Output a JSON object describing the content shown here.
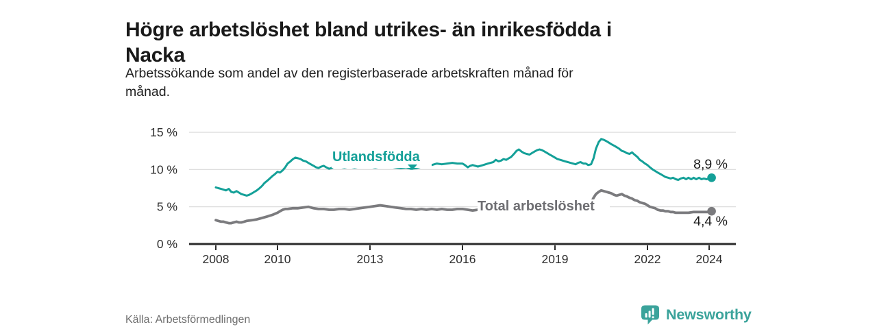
{
  "header": {
    "title_lines": [
      "Högre arbetslöshet bland utrikes- än inrikesfödda i",
      "Nacka"
    ],
    "subtitle_lines": [
      "Arbetssökande som andel av den registerbaserade arbetskraften månad för",
      "månad."
    ]
  },
  "footer": {
    "source": "Källa: Arbetsförmedlingen",
    "brand": "Newsworthy",
    "brand_icon": "newsworthy-speech-bubble-barchart-icon",
    "brand_color": "#3ba39b"
  },
  "colors": {
    "accent_teal": "#14a098",
    "line_gray": "#7b7b7e",
    "label_gray": "#6e6e72",
    "grid": "#d9d9d9",
    "axis": "#2b2b2b",
    "tick_text": "#2f2f2f"
  },
  "chart_data": {
    "type": "line",
    "title": "Högre arbetslöshet bland utrikes- än inrikesfödda i Nacka",
    "subtitle": "Arbetssökande som andel av den registerbaserade arbetskraften månad för månad.",
    "source": "Källa: Arbetsförmedlingen",
    "grid": true,
    "legend_position": "inline-labels",
    "x_axis": {
      "range": [
        2007.1,
        2024.9
      ],
      "ticks": [
        2008,
        2010,
        2013,
        2016,
        2019,
        2022,
        2024
      ]
    },
    "y_axis": {
      "range": [
        0,
        15
      ],
      "unit": "%",
      "ticks": [
        0,
        5,
        10,
        15
      ],
      "tick_labels": [
        "0 %",
        "5 %",
        "10 %",
        "15 %"
      ]
    },
    "series": [
      {
        "name": "Utlandsfödda",
        "color": "#14a098",
        "end_value": 8.9,
        "end_label": "8,9 %",
        "points": [
          [
            2008.0,
            7.6
          ],
          [
            2008.08,
            7.5
          ],
          [
            2008.17,
            7.4
          ],
          [
            2008.25,
            7.3
          ],
          [
            2008.33,
            7.2
          ],
          [
            2008.42,
            7.4
          ],
          [
            2008.5,
            7.0
          ],
          [
            2008.58,
            6.9
          ],
          [
            2008.67,
            7.1
          ],
          [
            2008.75,
            6.9
          ],
          [
            2008.83,
            6.7
          ],
          [
            2008.92,
            6.6
          ],
          [
            2009.0,
            6.5
          ],
          [
            2009.08,
            6.6
          ],
          [
            2009.17,
            6.8
          ],
          [
            2009.25,
            7.0
          ],
          [
            2009.33,
            7.2
          ],
          [
            2009.42,
            7.5
          ],
          [
            2009.5,
            7.8
          ],
          [
            2009.58,
            8.2
          ],
          [
            2009.67,
            8.5
          ],
          [
            2009.75,
            8.8
          ],
          [
            2009.83,
            9.1
          ],
          [
            2009.92,
            9.4
          ],
          [
            2010.0,
            9.7
          ],
          [
            2010.08,
            9.6
          ],
          [
            2010.17,
            9.9
          ],
          [
            2010.25,
            10.3
          ],
          [
            2010.33,
            10.8
          ],
          [
            2010.42,
            11.1
          ],
          [
            2010.5,
            11.4
          ],
          [
            2010.58,
            11.6
          ],
          [
            2010.67,
            11.5
          ],
          [
            2010.75,
            11.4
          ],
          [
            2010.83,
            11.2
          ],
          [
            2010.92,
            11.1
          ],
          [
            2011.0,
            10.9
          ],
          [
            2011.08,
            10.7
          ],
          [
            2011.17,
            10.5
          ],
          [
            2011.25,
            10.3
          ],
          [
            2011.33,
            10.2
          ],
          [
            2011.42,
            10.4
          ],
          [
            2011.5,
            10.5
          ],
          [
            2011.58,
            10.3
          ],
          [
            2011.67,
            10.1
          ],
          [
            2011.75,
            10.2
          ],
          [
            2011.83,
            10.4
          ],
          [
            2011.92,
            10.5
          ],
          [
            2012.0,
            10.4
          ],
          [
            2012.17,
            10.3
          ],
          [
            2012.33,
            10.4
          ],
          [
            2012.5,
            10.3
          ],
          [
            2012.67,
            10.4
          ],
          [
            2012.83,
            10.5
          ],
          [
            2013.0,
            10.4
          ],
          [
            2013.17,
            10.3
          ],
          [
            2013.33,
            10.4
          ],
          [
            2013.5,
            10.5
          ],
          [
            2013.67,
            10.4
          ],
          [
            2013.83,
            10.3
          ],
          [
            2014.0,
            10.2
          ],
          [
            2014.17,
            10.3
          ],
          [
            2014.33,
            10.1
          ],
          [
            2014.5,
            10.2
          ],
          [
            2014.67,
            10.4
          ],
          [
            2014.83,
            10.5
          ],
          [
            2015.0,
            10.6
          ],
          [
            2015.17,
            10.8
          ],
          [
            2015.33,
            10.7
          ],
          [
            2015.5,
            10.8
          ],
          [
            2015.67,
            10.9
          ],
          [
            2015.83,
            10.8
          ],
          [
            2016.0,
            10.8
          ],
          [
            2016.08,
            10.6
          ],
          [
            2016.17,
            10.3
          ],
          [
            2016.25,
            10.5
          ],
          [
            2016.33,
            10.6
          ],
          [
            2016.5,
            10.4
          ],
          [
            2016.67,
            10.6
          ],
          [
            2016.83,
            10.8
          ],
          [
            2017.0,
            11.0
          ],
          [
            2017.08,
            11.3
          ],
          [
            2017.17,
            11.1
          ],
          [
            2017.25,
            11.2
          ],
          [
            2017.33,
            11.4
          ],
          [
            2017.42,
            11.3
          ],
          [
            2017.5,
            11.5
          ],
          [
            2017.58,
            11.7
          ],
          [
            2017.67,
            12.1
          ],
          [
            2017.75,
            12.5
          ],
          [
            2017.83,
            12.7
          ],
          [
            2017.92,
            12.4
          ],
          [
            2018.0,
            12.2
          ],
          [
            2018.08,
            12.1
          ],
          [
            2018.17,
            12.0
          ],
          [
            2018.25,
            12.2
          ],
          [
            2018.33,
            12.4
          ],
          [
            2018.42,
            12.6
          ],
          [
            2018.5,
            12.7
          ],
          [
            2018.58,
            12.6
          ],
          [
            2018.67,
            12.4
          ],
          [
            2018.75,
            12.2
          ],
          [
            2018.83,
            12.0
          ],
          [
            2018.92,
            11.8
          ],
          [
            2019.0,
            11.6
          ],
          [
            2019.08,
            11.4
          ],
          [
            2019.17,
            11.3
          ],
          [
            2019.25,
            11.2
          ],
          [
            2019.33,
            11.1
          ],
          [
            2019.42,
            11.0
          ],
          [
            2019.5,
            10.9
          ],
          [
            2019.58,
            10.8
          ],
          [
            2019.67,
            10.7
          ],
          [
            2019.75,
            10.9
          ],
          [
            2019.83,
            11.0
          ],
          [
            2019.92,
            10.8
          ],
          [
            2020.0,
            10.8
          ],
          [
            2020.08,
            10.6
          ],
          [
            2020.17,
            10.7
          ],
          [
            2020.25,
            11.5
          ],
          [
            2020.33,
            12.8
          ],
          [
            2020.42,
            13.7
          ],
          [
            2020.5,
            14.1
          ],
          [
            2020.58,
            14.0
          ],
          [
            2020.67,
            13.8
          ],
          [
            2020.75,
            13.6
          ],
          [
            2020.83,
            13.4
          ],
          [
            2020.92,
            13.2
          ],
          [
            2021.0,
            13.0
          ],
          [
            2021.08,
            12.8
          ],
          [
            2021.17,
            12.5
          ],
          [
            2021.25,
            12.4
          ],
          [
            2021.33,
            12.2
          ],
          [
            2021.42,
            12.1
          ],
          [
            2021.5,
            12.3
          ],
          [
            2021.58,
            12.0
          ],
          [
            2021.67,
            11.7
          ],
          [
            2021.75,
            11.3
          ],
          [
            2021.83,
            11.1
          ],
          [
            2021.92,
            10.8
          ],
          [
            2022.0,
            10.6
          ],
          [
            2022.08,
            10.3
          ],
          [
            2022.17,
            10.0
          ],
          [
            2022.25,
            9.8
          ],
          [
            2022.33,
            9.6
          ],
          [
            2022.42,
            9.4
          ],
          [
            2022.5,
            9.2
          ],
          [
            2022.58,
            9.0
          ],
          [
            2022.67,
            8.9
          ],
          [
            2022.75,
            8.8
          ],
          [
            2022.83,
            8.9
          ],
          [
            2022.92,
            8.7
          ],
          [
            2023.0,
            8.6
          ],
          [
            2023.08,
            8.8
          ],
          [
            2023.17,
            8.9
          ],
          [
            2023.25,
            8.7
          ],
          [
            2023.33,
            8.9
          ],
          [
            2023.42,
            8.7
          ],
          [
            2023.5,
            8.9
          ],
          [
            2023.58,
            8.7
          ],
          [
            2023.67,
            8.9
          ],
          [
            2023.75,
            8.7
          ],
          [
            2023.83,
            8.8
          ],
          [
            2023.92,
            8.7
          ],
          [
            2024.0,
            8.8
          ],
          [
            2024.08,
            8.9
          ]
        ]
      },
      {
        "name": "Total arbetslöshet",
        "color": "#7b7b7e",
        "end_value": 4.4,
        "end_label": "4,4 %",
        "points": [
          [
            2008.0,
            3.2
          ],
          [
            2008.08,
            3.1
          ],
          [
            2008.17,
            3.0
          ],
          [
            2008.25,
            3.0
          ],
          [
            2008.33,
            2.9
          ],
          [
            2008.42,
            2.8
          ],
          [
            2008.5,
            2.8
          ],
          [
            2008.58,
            2.9
          ],
          [
            2008.67,
            3.0
          ],
          [
            2008.75,
            2.9
          ],
          [
            2008.83,
            2.9
          ],
          [
            2008.92,
            3.0
          ],
          [
            2009.0,
            3.1
          ],
          [
            2009.17,
            3.2
          ],
          [
            2009.33,
            3.3
          ],
          [
            2009.5,
            3.5
          ],
          [
            2009.67,
            3.7
          ],
          [
            2009.83,
            3.9
          ],
          [
            2010.0,
            4.2
          ],
          [
            2010.08,
            4.4
          ],
          [
            2010.17,
            4.6
          ],
          [
            2010.25,
            4.7
          ],
          [
            2010.33,
            4.7
          ],
          [
            2010.5,
            4.8
          ],
          [
            2010.67,
            4.8
          ],
          [
            2010.83,
            4.9
          ],
          [
            2011.0,
            5.0
          ],
          [
            2011.17,
            4.8
          ],
          [
            2011.33,
            4.7
          ],
          [
            2011.5,
            4.7
          ],
          [
            2011.67,
            4.6
          ],
          [
            2011.83,
            4.6
          ],
          [
            2012.0,
            4.7
          ],
          [
            2012.17,
            4.7
          ],
          [
            2012.33,
            4.6
          ],
          [
            2012.5,
            4.7
          ],
          [
            2012.67,
            4.8
          ],
          [
            2012.83,
            4.9
          ],
          [
            2013.0,
            5.0
          ],
          [
            2013.17,
            5.1
          ],
          [
            2013.33,
            5.2
          ],
          [
            2013.5,
            5.1
          ],
          [
            2013.67,
            5.0
          ],
          [
            2013.83,
            4.9
          ],
          [
            2014.0,
            4.8
          ],
          [
            2014.17,
            4.7
          ],
          [
            2014.33,
            4.7
          ],
          [
            2014.5,
            4.6
          ],
          [
            2014.67,
            4.7
          ],
          [
            2014.83,
            4.6
          ],
          [
            2015.0,
            4.7
          ],
          [
            2015.17,
            4.6
          ],
          [
            2015.33,
            4.7
          ],
          [
            2015.5,
            4.6
          ],
          [
            2015.67,
            4.6
          ],
          [
            2015.83,
            4.7
          ],
          [
            2016.0,
            4.7
          ],
          [
            2016.17,
            4.6
          ],
          [
            2016.33,
            4.5
          ],
          [
            2016.5,
            4.6
          ],
          [
            2016.67,
            4.5
          ],
          [
            2016.83,
            4.6
          ],
          [
            2017.0,
            4.6
          ],
          [
            2017.17,
            4.7
          ],
          [
            2017.33,
            4.6
          ],
          [
            2017.5,
            4.7
          ],
          [
            2017.67,
            4.8
          ],
          [
            2017.83,
            4.8
          ],
          [
            2018.0,
            4.8
          ],
          [
            2018.17,
            4.9
          ],
          [
            2018.33,
            4.9
          ],
          [
            2018.5,
            5.0
          ],
          [
            2018.67,
            4.9
          ],
          [
            2018.83,
            5.0
          ],
          [
            2019.0,
            5.0
          ],
          [
            2019.17,
            5.1
          ],
          [
            2019.33,
            5.1
          ],
          [
            2019.5,
            5.2
          ],
          [
            2019.67,
            5.1
          ],
          [
            2019.83,
            5.2
          ],
          [
            2020.0,
            5.2
          ],
          [
            2020.08,
            5.3
          ],
          [
            2020.17,
            5.5
          ],
          [
            2020.25,
            6.2
          ],
          [
            2020.33,
            6.7
          ],
          [
            2020.42,
            7.0
          ],
          [
            2020.5,
            7.2
          ],
          [
            2020.58,
            7.1
          ],
          [
            2020.67,
            7.0
          ],
          [
            2020.75,
            6.9
          ],
          [
            2020.83,
            6.8
          ],
          [
            2020.92,
            6.6
          ],
          [
            2021.0,
            6.5
          ],
          [
            2021.08,
            6.6
          ],
          [
            2021.17,
            6.7
          ],
          [
            2021.25,
            6.5
          ],
          [
            2021.33,
            6.4
          ],
          [
            2021.42,
            6.2
          ],
          [
            2021.5,
            6.1
          ],
          [
            2021.58,
            5.9
          ],
          [
            2021.67,
            5.8
          ],
          [
            2021.75,
            5.6
          ],
          [
            2021.83,
            5.5
          ],
          [
            2021.92,
            5.4
          ],
          [
            2022.0,
            5.2
          ],
          [
            2022.08,
            5.0
          ],
          [
            2022.17,
            4.9
          ],
          [
            2022.25,
            4.8
          ],
          [
            2022.33,
            4.6
          ],
          [
            2022.42,
            4.5
          ],
          [
            2022.5,
            4.5
          ],
          [
            2022.58,
            4.4
          ],
          [
            2022.67,
            4.4
          ],
          [
            2022.75,
            4.3
          ],
          [
            2022.83,
            4.3
          ],
          [
            2022.92,
            4.2
          ],
          [
            2023.0,
            4.2
          ],
          [
            2023.17,
            4.2
          ],
          [
            2023.33,
            4.2
          ],
          [
            2023.5,
            4.3
          ],
          [
            2023.67,
            4.3
          ],
          [
            2023.83,
            4.3
          ],
          [
            2024.0,
            4.3
          ],
          [
            2024.08,
            4.4
          ]
        ]
      }
    ]
  }
}
